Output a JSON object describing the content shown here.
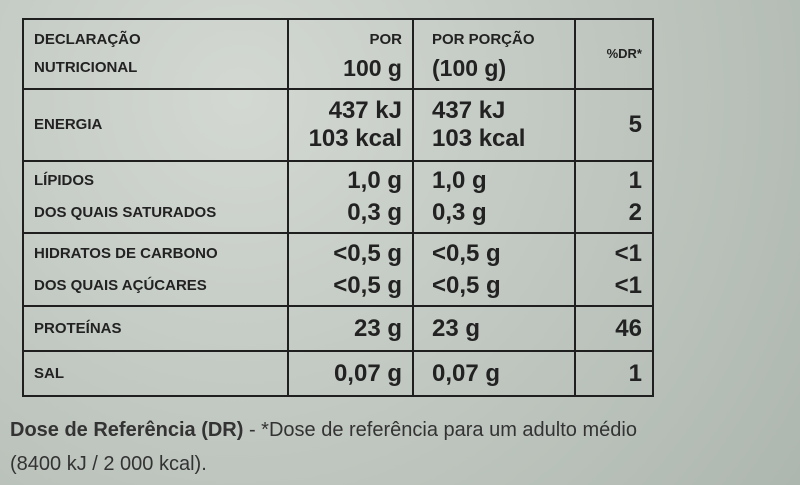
{
  "table": {
    "header": [
      [
        "DECLARAÇÃO",
        "NUTRICIONAL"
      ],
      [
        "POR",
        "100 g"
      ],
      [
        "POR PORÇÃO",
        "(100 g)"
      ],
      [
        "%DR*"
      ]
    ],
    "rows": [
      [
        [
          "ENERGIA"
        ],
        [
          "437 kJ",
          "103 kcal"
        ],
        [
          "437 kJ",
          "103 kcal"
        ],
        [
          "5"
        ]
      ],
      [
        [
          "LÍPIDOS",
          "DOS QUAIS SATURADOS"
        ],
        [
          "1,0 g",
          "0,3 g"
        ],
        [
          "1,0 g",
          "0,3 g"
        ],
        [
          "1",
          "2"
        ]
      ],
      [
        [
          "HIDRATOS DE CARBONO",
          "DOS QUAIS AÇÚCARES"
        ],
        [
          "<0,5 g",
          "<0,5 g"
        ],
        [
          "<0,5 g",
          "<0,5 g"
        ],
        [
          "<1",
          "<1"
        ]
      ],
      [
        [
          "PROTEÍNAS"
        ],
        [
          "23 g"
        ],
        [
          "23 g"
        ],
        [
          "46"
        ]
      ],
      [
        [
          "SAL"
        ],
        [
          "0,07 g"
        ],
        [
          "0,07 g"
        ],
        [
          "1"
        ]
      ]
    ]
  },
  "footnote": {
    "bold": "Dose de Referência (DR)",
    "line1": "- *Dose de referência para um adulto médio",
    "line2": "(8400 kJ / 2 000 kcal)."
  }
}
